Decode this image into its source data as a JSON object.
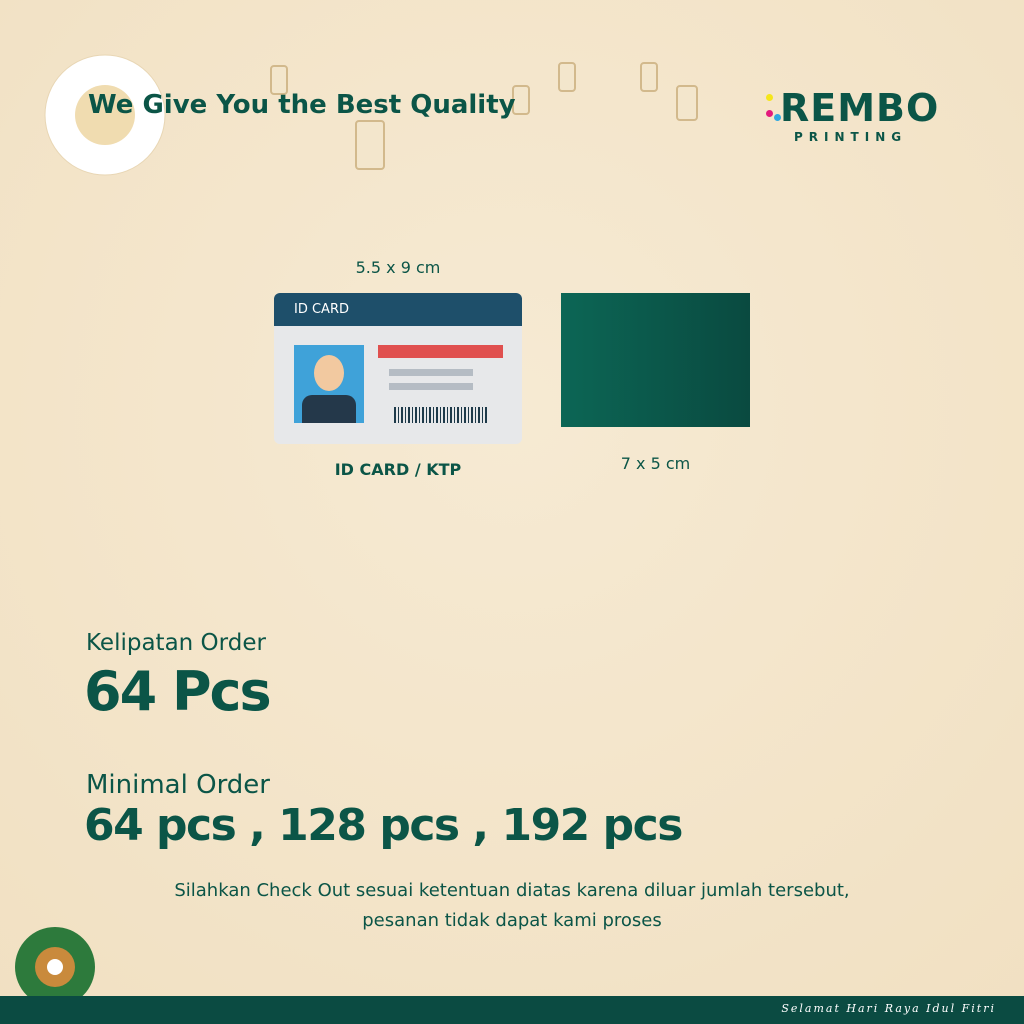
{
  "headline": "We Give You the Best Quality",
  "logo": {
    "name": "REMBO",
    "sub": "PRINTING",
    "dot_colors": [
      "#f5e61a",
      "#e3197c",
      "#2fa8e0"
    ]
  },
  "products": [
    {
      "size": "5.5 x 9 cm",
      "card_header": "ID CARD",
      "caption": "ID CARD / KTP"
    },
    {
      "size": "7 x 5 cm",
      "color": "#0b5a4c"
    }
  ],
  "multiple": {
    "label": "Kelipatan Order",
    "value": "64 Pcs"
  },
  "minimum": {
    "label": "Minimal Order",
    "value": "64 pcs , 128 pcs , 192 pcs"
  },
  "notice": {
    "line1": "Silahkan Check Out sesuai ketentuan diatas karena diluar jumlah tersebut,",
    "line2": "pesanan tidak dapat kami proses"
  },
  "footer": "Selamat Hari Raya Idul Fitri"
}
